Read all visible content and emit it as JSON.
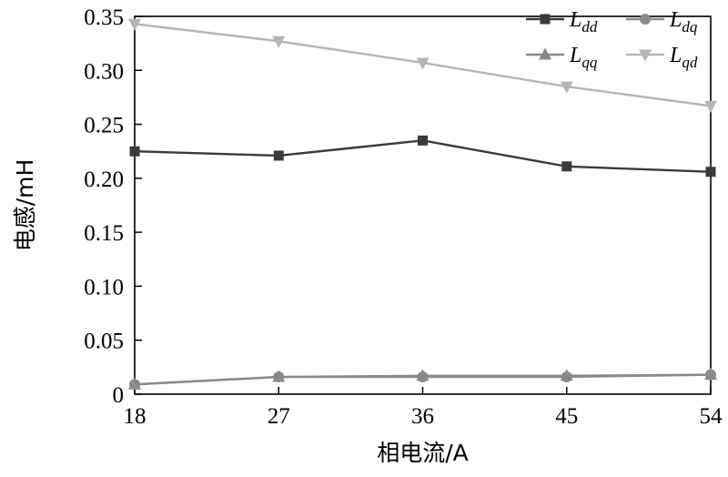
{
  "chart_data": {
    "type": "line",
    "xlabel": "相电流/A",
    "ylabel": "电感/mH",
    "x": [
      18,
      27,
      36,
      45,
      54
    ],
    "xlim": [
      18,
      54
    ],
    "ylim": [
      0,
      0.35
    ],
    "x_ticks": [
      "18",
      "27",
      "36",
      "45",
      "54"
    ],
    "y_ticks": [
      {
        "value": 0,
        "label": "0"
      },
      {
        "value": 0.05,
        "label": "0.05"
      },
      {
        "value": 0.1,
        "label": "0.10"
      },
      {
        "value": 0.15,
        "label": "0.15"
      },
      {
        "value": 0.2,
        "label": "0.20"
      },
      {
        "value": 0.25,
        "label": "0.25"
      },
      {
        "value": 0.3,
        "label": "0.30"
      },
      {
        "value": 0.35,
        "label": "0.35"
      }
    ],
    "grid": false,
    "legend_position": "top-right",
    "series": [
      {
        "id": "ldd",
        "name": "Ldd",
        "name_base": "L",
        "name_sub": "dd",
        "values": [
          0.225,
          0.221,
          0.235,
          0.211,
          0.206
        ],
        "color": "#3a3a3a",
        "marker": "square"
      },
      {
        "id": "ldq",
        "name": "Ldq",
        "name_base": "L",
        "name_sub": "dq",
        "values": [
          0.009,
          0.016,
          0.016,
          0.016,
          0.018
        ],
        "color": "#8a8a8a",
        "marker": "circle"
      },
      {
        "id": "lqq",
        "name": "Lqq",
        "name_base": "L",
        "name_sub": "qq",
        "values": [
          0.009,
          0.016,
          0.017,
          0.017,
          0.018
        ],
        "color": "#8a8a8a",
        "marker": "triangle-up"
      },
      {
        "id": "lqd",
        "name": "Lqd",
        "name_base": "L",
        "name_sub": "qd",
        "values": [
          0.343,
          0.327,
          0.307,
          0.285,
          0.267
        ],
        "color": "#b5b5b5",
        "marker": "triangle-down"
      }
    ]
  }
}
